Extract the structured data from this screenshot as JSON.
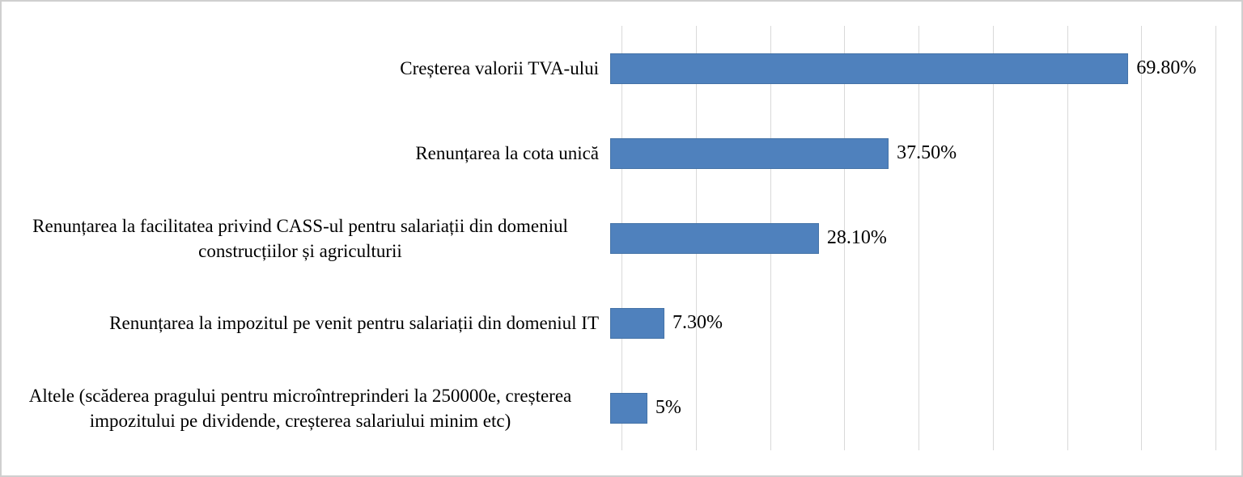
{
  "chart_data": {
    "type": "bar",
    "orientation": "horizontal",
    "title": "",
    "xlabel": "",
    "ylabel": "",
    "categories": [
      "Creșterea valorii TVA-ului",
      "Renunțarea la cota unică",
      "Renunțarea la facilitatea privind CASS-ul pentru salariații din domeniul construcțiilor și agriculturii",
      "Renunțarea la impozitul pe venit pentru salariații din domeniul IT",
      "Altele (scăderea pragului pentru microîntreprinderi la 250000e, creșterea impozitului pe dividende, creșterea salariului minim etc)"
    ],
    "values": [
      69.8,
      37.5,
      28.1,
      7.3,
      5
    ],
    "value_labels": [
      "69.80%",
      "37.50%",
      "28.10%",
      "7.30%",
      "5%"
    ],
    "xlim": [
      0,
      80
    ],
    "gridline_interval": 10,
    "grid": "vertical-only",
    "axis_tick_labels_visible": false,
    "legend": "none",
    "bar_color": "#4F81BD",
    "gridline_color": "#D9D9D9",
    "frame_border_color": "#CFCFCF",
    "background_color": "#FFFFFF"
  }
}
